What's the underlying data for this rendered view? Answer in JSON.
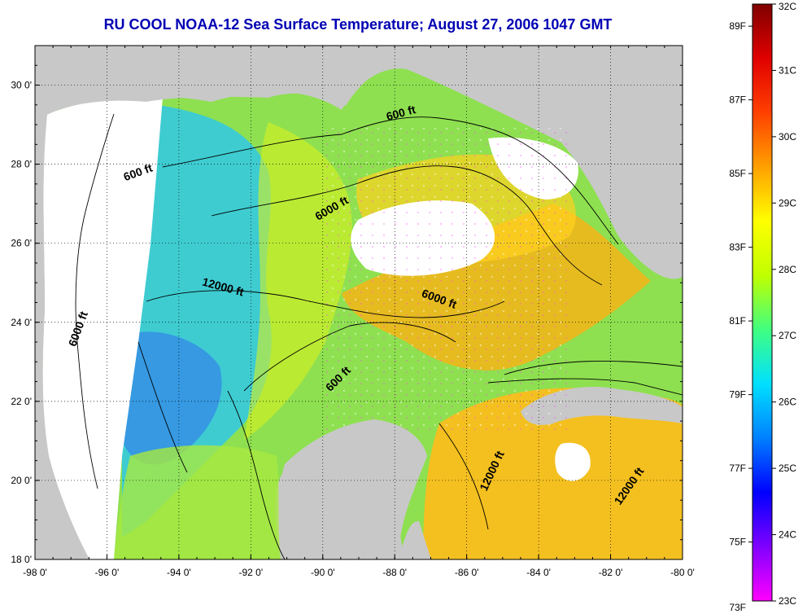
{
  "title": "RU COOL  NOAA-12  Sea Surface Temperature;  August 27, 2006 1047 GMT",
  "map": {
    "lon_range": [
      -98,
      -80
    ],
    "lat_range": [
      18,
      31
    ],
    "x_ticks": [
      {
        "lon": -98,
        "label": "-98 0'"
      },
      {
        "lon": -96,
        "label": "-96 0'"
      },
      {
        "lon": -94,
        "label": "-94 0'"
      },
      {
        "lon": -92,
        "label": "-92 0'"
      },
      {
        "lon": -90,
        "label": "-90 0'"
      },
      {
        "lon": -88,
        "label": "-88 0'"
      },
      {
        "lon": -86,
        "label": "-86 0'"
      },
      {
        "lon": -84,
        "label": "-84 0'"
      },
      {
        "lon": -82,
        "label": "-82 0'"
      },
      {
        "lon": -80,
        "label": "-80 0'"
      }
    ],
    "y_ticks": [
      {
        "lat": 18,
        "label": "18 0'"
      },
      {
        "lat": 20,
        "label": "20 0'"
      },
      {
        "lat": 22,
        "label": "22 0'"
      },
      {
        "lat": 24,
        "label": "24 0'"
      },
      {
        "lat": 26,
        "label": "26 0'"
      },
      {
        "lat": 28,
        "label": "28 0'"
      },
      {
        "lat": 30,
        "label": "30 0'"
      }
    ],
    "contour_labels": [
      {
        "text": "600 ft",
        "lon": -87.8,
        "lat": 29.2,
        "angle": -15
      },
      {
        "text": "600 ft",
        "lon": -95.1,
        "lat": 27.7,
        "angle": -20
      },
      {
        "text": "6000 ft",
        "lon": -89.7,
        "lat": 26.8,
        "angle": -30
      },
      {
        "text": "12000 ft",
        "lon": -92.8,
        "lat": 24.8,
        "angle": 15
      },
      {
        "text": "6000 ft",
        "lon": -86.8,
        "lat": 24.5,
        "angle": 20
      },
      {
        "text": "6000 ft",
        "lon": -96.7,
        "lat": 23.8,
        "angle": -70
      },
      {
        "text": "600 ft",
        "lon": -89.5,
        "lat": 22.5,
        "angle": -45
      },
      {
        "text": "12000 ft",
        "lon": -85.2,
        "lat": 20.2,
        "angle": -65
      },
      {
        "text": "12000 ft",
        "lon": -81.4,
        "lat": 19.8,
        "angle": -55
      }
    ],
    "colors": {
      "land": "#c8c8c8",
      "missing": "#ffffff",
      "water_base": "#8ee050"
    }
  },
  "colorbar": {
    "temp_c_range": [
      23,
      32
    ],
    "fahrenheit_labels": [
      "89F",
      "87F",
      "85F",
      "83F",
      "81F",
      "79F",
      "77F",
      "75F",
      "73F"
    ],
    "celsius_labels": [
      "32C",
      "31C",
      "30C",
      "29C",
      "28C",
      "27C",
      "26C",
      "25C",
      "24C",
      "23C"
    ],
    "colors": [
      "#ff00ff",
      "#8000ff",
      "#0000ff",
      "#0080ff",
      "#00e0ff",
      "#40ff80",
      "#c0ff00",
      "#ffff00",
      "#ffa000",
      "#ff4000",
      "#e00000",
      "#800000"
    ]
  }
}
